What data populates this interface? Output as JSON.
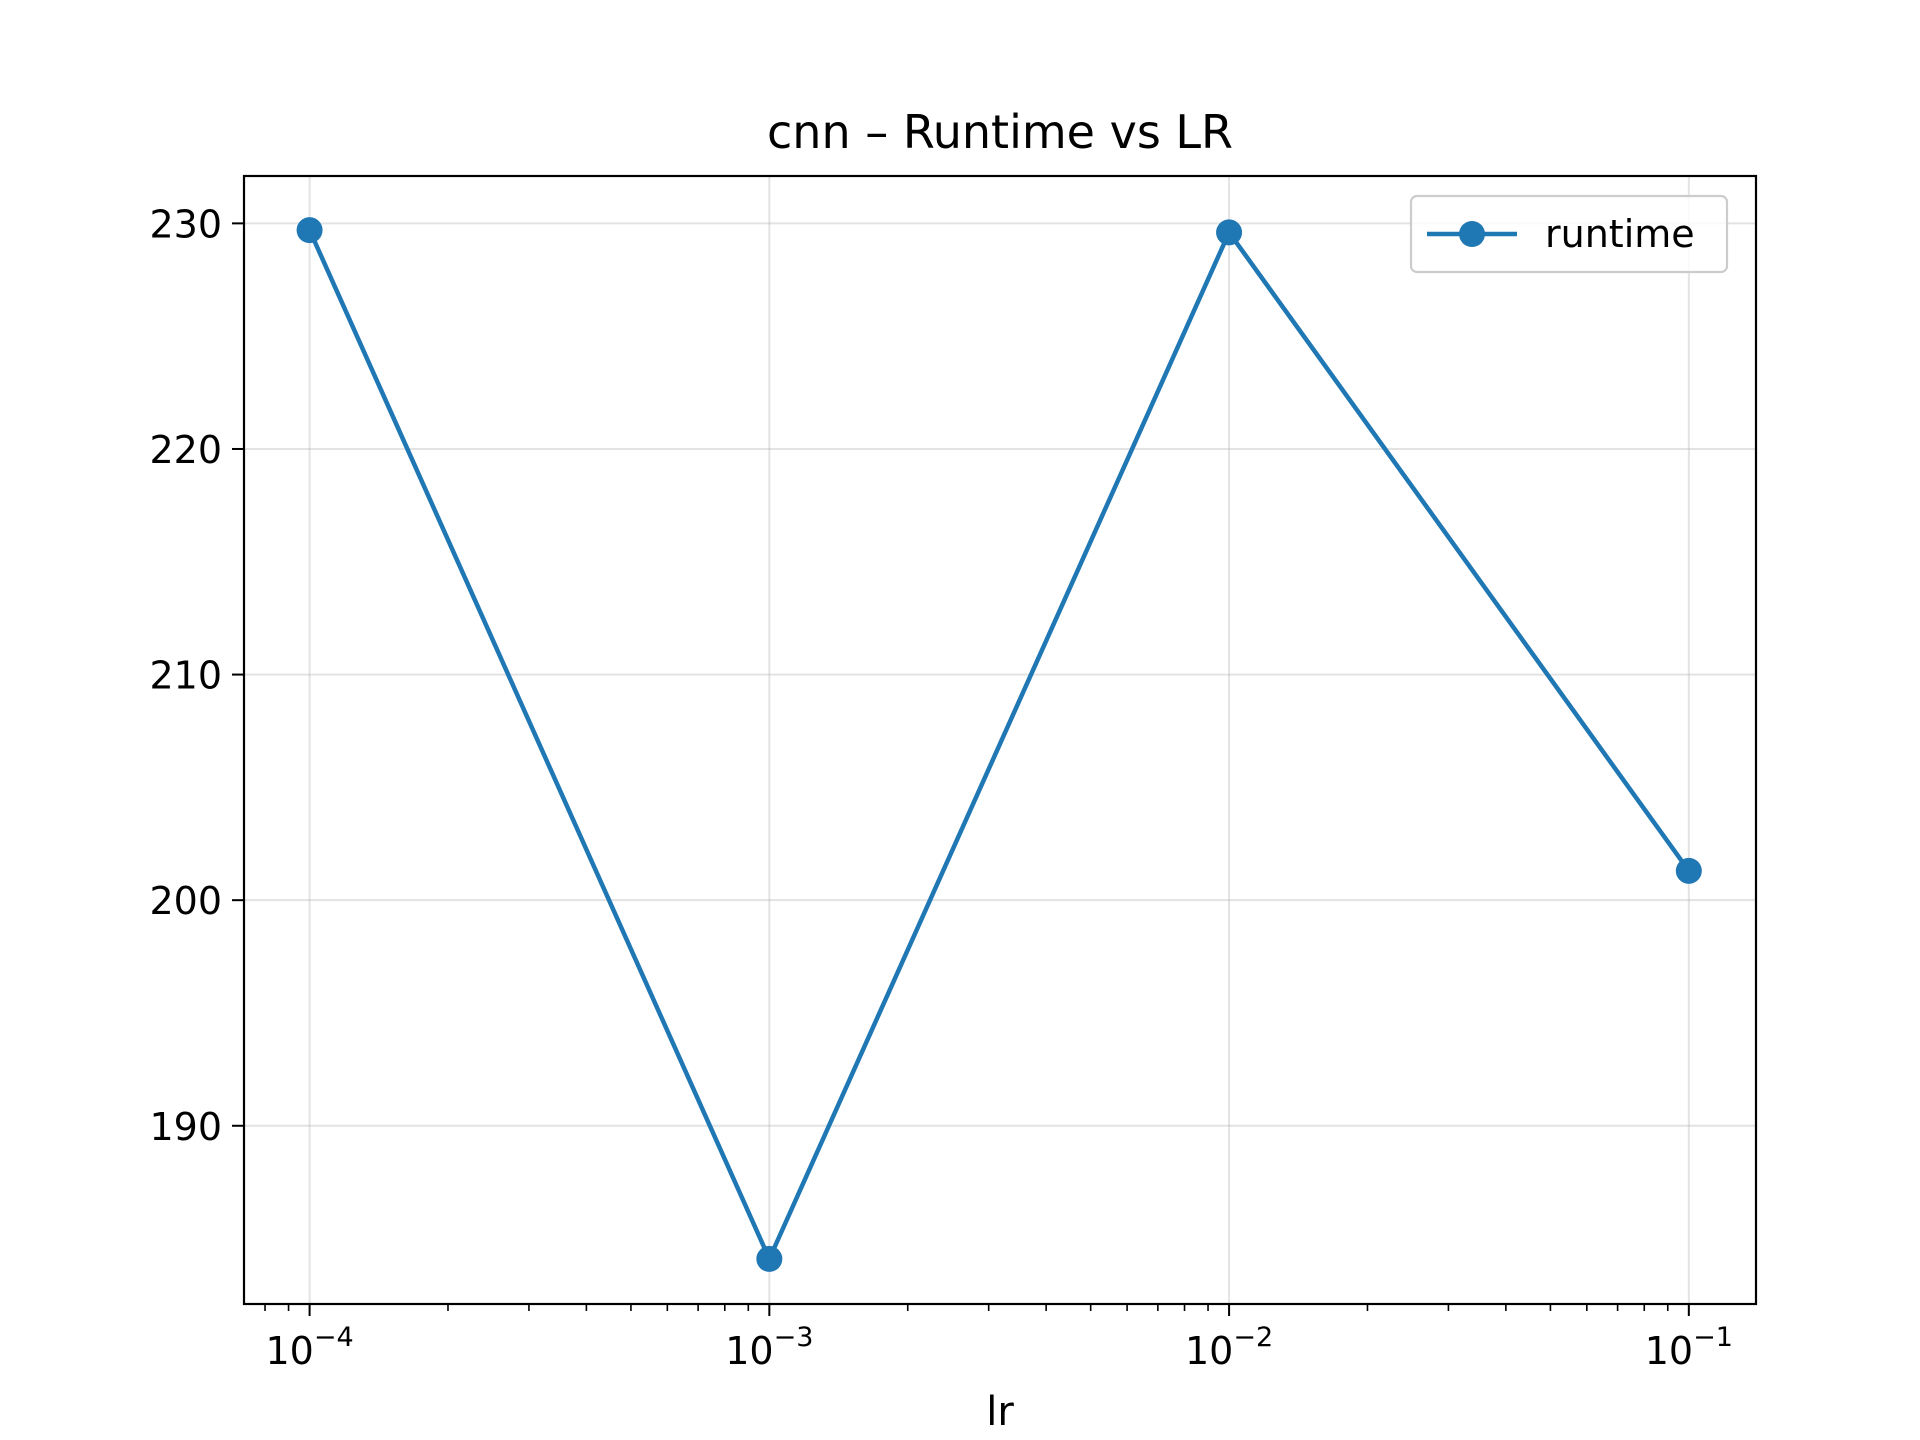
{
  "chart_data": {
    "type": "line",
    "title": "cnn – Runtime vs LR",
    "xlabel": "lr",
    "ylabel": "",
    "x_scale": "log",
    "x": [
      0.0001,
      0.001,
      0.01,
      0.1
    ],
    "series": [
      {
        "name": "runtime",
        "values": [
          229.7,
          184.1,
          229.6,
          201.3
        ],
        "color": "#1f77b4",
        "marker": "circle"
      }
    ],
    "xlim": [
      7.2e-05,
      0.14
    ],
    "ylim": [
      182.1,
      232.1
    ],
    "x_ticks": [
      {
        "value": 0.0001,
        "base": "10",
        "exp": "−4"
      },
      {
        "value": 0.001,
        "base": "10",
        "exp": "−3"
      },
      {
        "value": 0.01,
        "base": "10",
        "exp": "−2"
      },
      {
        "value": 0.1,
        "base": "10",
        "exp": "−1"
      }
    ],
    "y_ticks": [
      {
        "value": 190,
        "label": "190"
      },
      {
        "value": 200,
        "label": "200"
      },
      {
        "value": 210,
        "label": "210"
      },
      {
        "value": 220,
        "label": "220"
      },
      {
        "value": 230,
        "label": "230"
      }
    ],
    "grid": true,
    "legend": {
      "position": "top-right",
      "entries": [
        "runtime"
      ]
    }
  }
}
